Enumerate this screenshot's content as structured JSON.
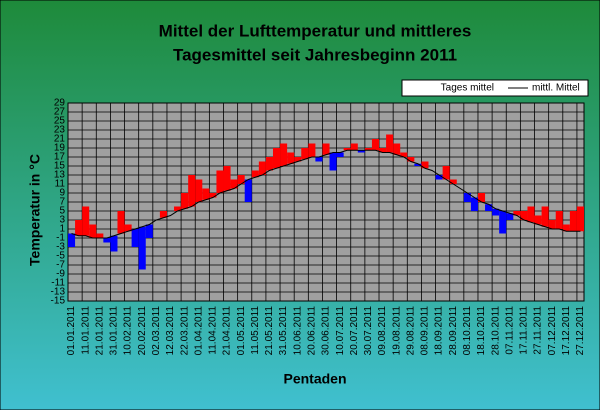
{
  "chart_data": {
    "type": "deviation",
    "title": "Mittel der Lufttemperatur und mittleres",
    "subtitle": "Tagesmittel seit Jahresbeginn 2011",
    "y_label": "Temperatur in °C",
    "x_label": "Pentaden",
    "categories": [
      "01.01.2011",
      null,
      "11.01.2011",
      null,
      "21.01.2011",
      null,
      "31.01.2011",
      null,
      "10.02.2011",
      null,
      "20.02.2011",
      null,
      "02.03.2011",
      null,
      "12.03.2011",
      null,
      "22.03.2011",
      null,
      "01.04.2011",
      null,
      "11.04.2011",
      null,
      "21.04.2011",
      null,
      "01.05.2011",
      null,
      "11.05.2011",
      null,
      "21.05.2011",
      null,
      "31.05.2011",
      null,
      "10.06.2011",
      null,
      "20.06.2011",
      null,
      "30.06.2011",
      null,
      "10.07.2011",
      null,
      "20.07.2011",
      null,
      "30.07.2011",
      null,
      "09.08.2011",
      null,
      "19.08.2011",
      null,
      "29.08.2011",
      null,
      "08.09.2011",
      null,
      "18.09.2011",
      null,
      "28.09.2011",
      null,
      "08.10.2011",
      null,
      "18.10.2011",
      null,
      "28.10.2011",
      null,
      "07.11.2011",
      null,
      "17.11.2011",
      null,
      "27.11.2011",
      null,
      "07.12.2011",
      null,
      "17.12.2011",
      null,
      "27.12.2011"
    ],
    "series": [
      {
        "name": "Tages mittel",
        "color": "#ff0000",
        "below_color": "#0000ff",
        "values": [
          -3,
          3,
          6,
          2,
          0,
          -2,
          -4,
          5,
          2,
          -3,
          -8,
          -1,
          3,
          5,
          4,
          6,
          9,
          13,
          12,
          10,
          9,
          14,
          15,
          12,
          13,
          7,
          14,
          16,
          17,
          19,
          20,
          18,
          17,
          19,
          20,
          16,
          20,
          14,
          17,
          19,
          20,
          18,
          19,
          21,
          19,
          22,
          20,
          18,
          17,
          15,
          16,
          14,
          12,
          15,
          12,
          10,
          7,
          5,
          9,
          5,
          4,
          0,
          3,
          5,
          5,
          6,
          4,
          6,
          3,
          5,
          2,
          5,
          6
        ]
      },
      {
        "name": "mittl. Mittel",
        "color": "#000000",
        "values": [
          0,
          -0.5,
          -0.5,
          -1,
          -1,
          -1,
          -0.5,
          0,
          0.5,
          1,
          1.5,
          2,
          3,
          3.5,
          4,
          5,
          5.5,
          6,
          7,
          7.5,
          8,
          9,
          9.5,
          10,
          11,
          12,
          12.5,
          13,
          14,
          14.5,
          15,
          15.5,
          16,
          16.5,
          17,
          17,
          17.5,
          18,
          18,
          18.5,
          18.5,
          18.5,
          18.5,
          18.5,
          18,
          18,
          17.5,
          17,
          16,
          15.5,
          14.5,
          14,
          13,
          12,
          11,
          10,
          9,
          8,
          7,
          6.5,
          5.5,
          5,
          4.5,
          4,
          3,
          2.5,
          2,
          1.5,
          1,
          1,
          0.5,
          0.5,
          0.5
        ]
      }
    ],
    "ylim": [
      -15,
      29
    ],
    "yticks": [
      -15,
      -13,
      -11,
      -9,
      -7,
      -5,
      -3,
      -1,
      1,
      3,
      5,
      7,
      9,
      11,
      13,
      15,
      17,
      19,
      21,
      23,
      25,
      27,
      29
    ],
    "grid": true
  }
}
